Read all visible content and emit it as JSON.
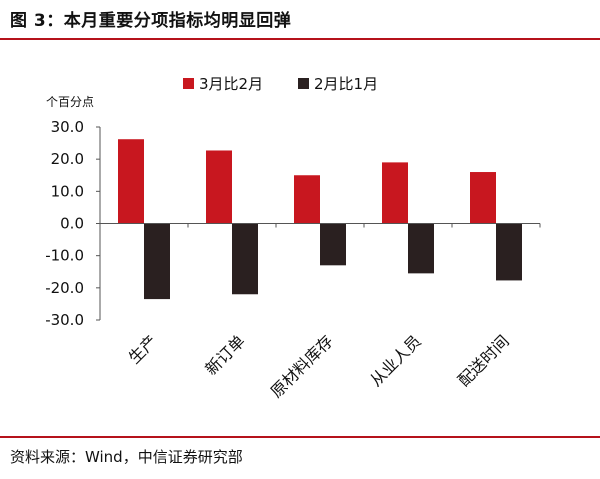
{
  "figure": {
    "title": "图 3：本月重要分项指标均明显回弹",
    "source": "资料来源：Wind，中信证券研究部"
  },
  "colors": {
    "rule": "#b5121b",
    "series_1": "#c8171f",
    "series_2": "#2a2020"
  },
  "chart_data": {
    "type": "bar",
    "title": "",
    "ylabel": "个百分点",
    "ylim": [
      -30,
      30
    ],
    "yticks": [
      30,
      20,
      10,
      0,
      -10,
      -20,
      -30
    ],
    "ytick_labels": [
      "30.0",
      "20.0",
      "10.0",
      "0.0",
      "-10.0",
      "-20.0",
      "-30.0"
    ],
    "categories": [
      "生产",
      "新订单",
      "原材料库存",
      "从业人员",
      "配送时间"
    ],
    "series": [
      {
        "name": "3月比2月",
        "values": [
          26.2,
          22.7,
          15.0,
          19.0,
          16.0
        ]
      },
      {
        "name": "2月比1月",
        "values": [
          -23.5,
          -22.0,
          -13.0,
          -15.5,
          -17.7
        ]
      }
    ],
    "legend_position": "top",
    "grid": false
  }
}
